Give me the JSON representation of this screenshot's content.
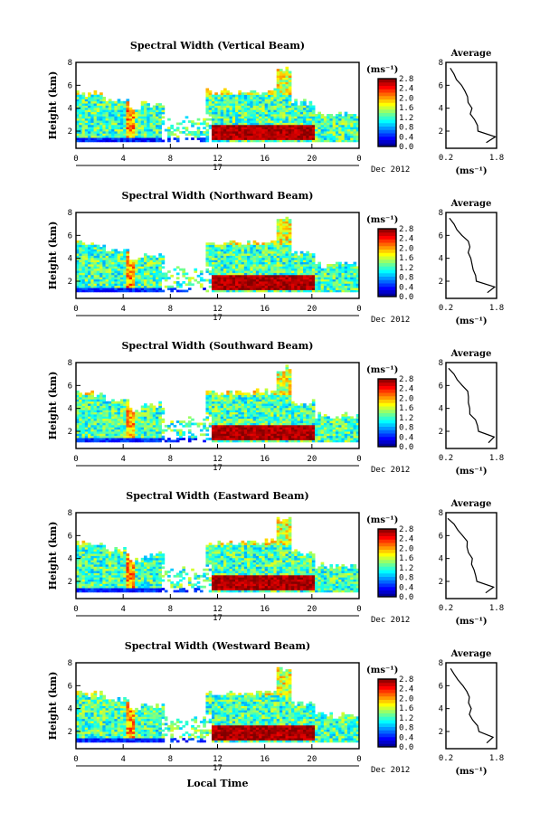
{
  "chart_data": {
    "type": "heatmap",
    "xlabel": "Local Time",
    "date_label": "Dec 2012",
    "day_label": "17",
    "x_ticks": [
      "0",
      "4",
      "8",
      "12",
      "16",
      "20",
      "0"
    ],
    "xlim_hours": [
      0,
      24
    ],
    "ylabel": "Height (km)",
    "y_ticks": [
      "2",
      "4",
      "6",
      "8"
    ],
    "ylim_km": [
      0.5,
      8
    ],
    "colorbar": {
      "unit_label": "(ms⁻¹)",
      "ticks": [
        "2.8",
        "2.4",
        "2.0",
        "1.6",
        "1.2",
        "0.8",
        "0.4",
        "0.0"
      ],
      "range": [
        0.0,
        2.8
      ],
      "colormap": "jet"
    },
    "average_panel": {
      "title": "Average",
      "x_ticks": [
        "0.2",
        "1.8"
      ],
      "xlabel": "(ms⁻¹)",
      "y_ticks": [
        "2",
        "4",
        "6",
        "8"
      ],
      "height_km": [
        1,
        1.5,
        2,
        2.5,
        3,
        3.5,
        4,
        4.5,
        5,
        5.5,
        6,
        6.5,
        7,
        7.5
      ],
      "width_ms": [
        1.5,
        1.7,
        1.2,
        1.15,
        1.1,
        1.0,
        1.0,
        0.95,
        0.9,
        0.85,
        0.75,
        0.55,
        0.45,
        0.3
      ]
    },
    "panels": [
      {
        "title": "Spectral Width (Vertical Beam)"
      },
      {
        "title": "Spectral Width (Northward Beam)"
      },
      {
        "title": "Spectral Width (Southward Beam)"
      },
      {
        "title": "Spectral Width (Eastward Beam)"
      },
      {
        "title": "Spectral Width (Westward Beam)"
      }
    ]
  }
}
